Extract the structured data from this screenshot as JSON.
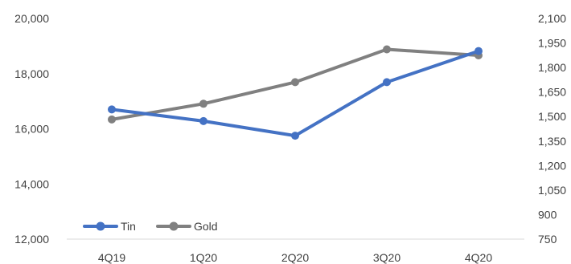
{
  "chart_data": {
    "type": "line",
    "categories": [
      "4Q19",
      "1Q20",
      "2Q20",
      "3Q20",
      "4Q20"
    ],
    "series": [
      {
        "name": "Tin",
        "axis": "left",
        "color": "#4472C4",
        "values": [
          16700,
          16280,
          15750,
          17690,
          18820
        ]
      },
      {
        "name": "Gold",
        "axis": "right",
        "color": "#808080",
        "values": [
          1482,
          1578,
          1710,
          1911,
          1874
        ]
      }
    ],
    "y_left": {
      "lim": [
        12000,
        20000
      ],
      "ticks": [
        12000,
        14000,
        16000,
        18000,
        20000
      ],
      "tick_labels": [
        "12,000",
        "14,000",
        "16,000",
        "18,000",
        "20,000"
      ]
    },
    "y_right": {
      "lim": [
        750,
        2100
      ],
      "ticks": [
        750,
        900,
        1050,
        1200,
        1350,
        1500,
        1650,
        1800,
        1950,
        2100
      ],
      "tick_labels": [
        "750",
        "900",
        "1,050",
        "1,200",
        "1,350",
        "1,500",
        "1,650",
        "1,800",
        "1,950",
        "2,100"
      ]
    },
    "title": "",
    "xlabel": "",
    "ylabel": "",
    "grid": false,
    "legend_position": "bottom-left"
  }
}
